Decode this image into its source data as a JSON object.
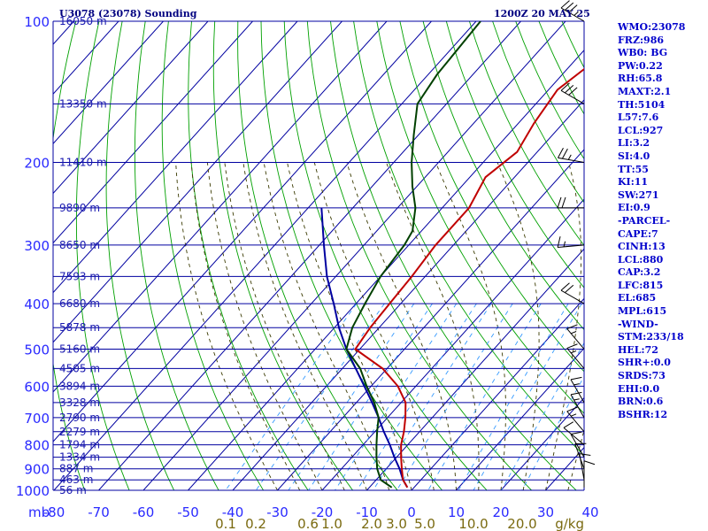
{
  "header": {
    "left_title": "U3078 (23078) Sounding",
    "right_title": "1200Z 20 MAY 25"
  },
  "indices": [
    "WMO:23078",
    "FRZ:986",
    "WB0: BG",
    "PW:0.22",
    "RH:65.8",
    "MAXT:2.1",
    "TH:5104",
    "L57:7.6",
    "LCL:927",
    "LI:3.2",
    "SI:4.0",
    "TT:55",
    "KI:11",
    "SW:271",
    "EI:0.9",
    "-PARCEL-",
    "CAPE:7",
    "CINH:13",
    "LCL:880",
    "CAP:3.2",
    "LFC:815",
    "EL:685",
    "MPL:615",
    "-WIND-",
    "STM:233/18",
    "HEL:72",
    "SHR+:0.0",
    "SRDS:73",
    "EHI:0.0",
    "BRN:0.6",
    "BSHR:12"
  ],
  "colors": {
    "grid": "#0000a0",
    "isotherm": "#0000a0",
    "dry_adiabat": "#00a000",
    "moist_adiabat": "#3a3a00",
    "mixing_ratio": "#3399ff",
    "temperature": "#c00000",
    "dewpoint": "#004000",
    "parcel": "#0000a0",
    "wind": "#000000",
    "axis_label": "#2a2aff",
    "mixing_label": "#7a6a10"
  },
  "chart_data": {
    "type": "skew-t",
    "y_axis_unit_label": "mb",
    "x_axis_unit_label": "g/kg",
    "pressure_levels": [
      100,
      200,
      300,
      400,
      500,
      600,
      700,
      800,
      900,
      1000
    ],
    "temperature_ticks": [
      -80,
      -70,
      -60,
      -50,
      -40,
      -30,
      -20,
      -10,
      0,
      10,
      20,
      30,
      40
    ],
    "temperature_tick_labels": [
      "-80",
      "-70",
      "-60",
      "-50",
      "-40",
      "-30",
      "-20",
      "-10",
      "0",
      "10",
      "20",
      "30",
      "40"
    ],
    "mixing_ratio_labels": [
      "0.1",
      "0.2",
      "0.6",
      "1.0",
      "2.0",
      "3.0",
      "5.0",
      "10.0",
      "20.0"
    ],
    "height_labels": [
      {
        "p": 100,
        "label": "16050 m"
      },
      {
        "p": 150,
        "label": "13350 m"
      },
      {
        "p": 200,
        "label": "11410 m"
      },
      {
        "p": 250,
        "label": "9890 m"
      },
      {
        "p": 300,
        "label": "8650 m"
      },
      {
        "p": 350,
        "label": "7593 m"
      },
      {
        "p": 400,
        "label": "6680 m"
      },
      {
        "p": 450,
        "label": "5878 m"
      },
      {
        "p": 500,
        "label": "5160 m"
      },
      {
        "p": 550,
        "label": "4505 m"
      },
      {
        "p": 600,
        "label": "3894 m"
      },
      {
        "p": 650,
        "label": "3328 m"
      },
      {
        "p": 700,
        "label": "2790 m"
      },
      {
        "p": 750,
        "label": "2279 m"
      },
      {
        "p": 800,
        "label": "1794 m"
      },
      {
        "p": 850,
        "label": "1334 m"
      },
      {
        "p": 900,
        "label": "887 m"
      },
      {
        "p": 950,
        "label": "463 m"
      },
      {
        "p": 1000,
        "label": "56 m"
      }
    ],
    "temperature_profile": [
      [
        100,
        -49
      ],
      [
        125,
        -46
      ],
      [
        140,
        -48
      ],
      [
        165,
        -46.5
      ],
      [
        190,
        -44.5
      ],
      [
        215,
        -46.5
      ],
      [
        250,
        -44
      ],
      [
        300,
        -44
      ],
      [
        350,
        -43
      ],
      [
        400,
        -42.5
      ],
      [
        450,
        -42
      ],
      [
        500,
        -41
      ],
      [
        550,
        -31
      ],
      [
        600,
        -24
      ],
      [
        650,
        -19
      ],
      [
        700,
        -16
      ],
      [
        750,
        -13.5
      ],
      [
        800,
        -11.5
      ],
      [
        850,
        -9
      ],
      [
        900,
        -6.5
      ],
      [
        950,
        -4
      ],
      [
        986,
        -1.5
      ]
    ],
    "dewpoint_profile": [
      [
        100,
        -79
      ],
      [
        130,
        -78
      ],
      [
        150,
        -76.5
      ],
      [
        175,
        -71
      ],
      [
        200,
        -66
      ],
      [
        225,
        -61
      ],
      [
        250,
        -56
      ],
      [
        280,
        -52
      ],
      [
        300,
        -51
      ],
      [
        350,
        -50
      ],
      [
        400,
        -48
      ],
      [
        450,
        -46
      ],
      [
        500,
        -43
      ],
      [
        550,
        -36
      ],
      [
        600,
        -31
      ],
      [
        650,
        -26
      ],
      [
        700,
        -22
      ],
      [
        750,
        -19.5
      ],
      [
        800,
        -17
      ],
      [
        850,
        -14.5
      ],
      [
        900,
        -12
      ],
      [
        950,
        -9
      ],
      [
        986,
        -5
      ]
    ],
    "parcel_path": [
      [
        986,
        -1.5
      ],
      [
        950,
        -4
      ],
      [
        900,
        -7
      ],
      [
        850,
        -10.5
      ],
      [
        800,
        -14
      ],
      [
        750,
        -18
      ],
      [
        700,
        -22
      ],
      [
        650,
        -26.5
      ],
      [
        600,
        -31.5
      ],
      [
        550,
        -37
      ],
      [
        500,
        -43
      ],
      [
        450,
        -49
      ],
      [
        400,
        -55
      ],
      [
        350,
        -62
      ],
      [
        300,
        -69
      ],
      [
        250,
        -77
      ]
    ],
    "wind_barbs": [
      {
        "p": 100,
        "dir": 300,
        "spd": 35
      },
      {
        "p": 150,
        "dir": 300,
        "spd": 30
      },
      {
        "p": 200,
        "dir": 280,
        "spd": 25
      },
      {
        "p": 250,
        "dir": 270,
        "spd": 20
      },
      {
        "p": 300,
        "dir": 265,
        "spd": 15
      },
      {
        "p": 400,
        "dir": 300,
        "spd": 20
      },
      {
        "p": 500,
        "dir": 320,
        "spd": 15
      },
      {
        "p": 550,
        "dir": 320,
        "spd": 15
      },
      {
        "p": 650,
        "dir": 330,
        "spd": 15
      },
      {
        "p": 700,
        "dir": 330,
        "spd": 15
      },
      {
        "p": 750,
        "dir": 320,
        "spd": 15
      },
      {
        "p": 800,
        "dir": 310,
        "spd": 10
      },
      {
        "p": 850,
        "dir": 330,
        "spd": 10
      },
      {
        "p": 900,
        "dir": 340,
        "spd": 10
      },
      {
        "p": 950,
        "dir": 350,
        "spd": 10
      },
      {
        "p": 986,
        "dir": 0,
        "spd": 10
      }
    ]
  }
}
